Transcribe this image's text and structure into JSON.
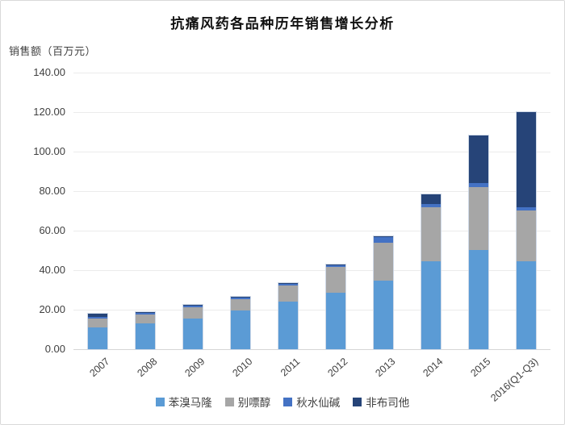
{
  "chart_data": {
    "type": "bar",
    "stacked": true,
    "title": "抗痛风药各品种历年销售增长分析",
    "y_unit_label": "销售额（百万元）",
    "categories": [
      "2007",
      "2008",
      "2009",
      "2010",
      "2011",
      "2012",
      "2013",
      "2014",
      "2015",
      "2016(Q1-Q3)"
    ],
    "series": [
      {
        "name": "苯溴马隆",
        "color": "#5B9BD5",
        "values": [
          11.0,
          13.0,
          15.7,
          19.4,
          23.9,
          28.6,
          34.8,
          44.3,
          50.1,
          44.4
        ]
      },
      {
        "name": "别嘌醇",
        "color": "#A6A6A6",
        "values": [
          4.5,
          4.6,
          5.6,
          6.0,
          8.5,
          13.0,
          19.2,
          27.7,
          32.0,
          26.0
        ]
      },
      {
        "name": "秋水仙碱",
        "color": "#4472C4",
        "values": [
          1.0,
          0.8,
          0.8,
          0.8,
          0.6,
          0.9,
          2.7,
          1.3,
          2.0,
          1.4
        ]
      },
      {
        "name": "非布司他",
        "color": "#264478",
        "values": [
          1.3,
          0.5,
          0.4,
          0.4,
          0.5,
          0.4,
          0.3,
          5.0,
          24.0,
          48.2
        ]
      }
    ],
    "totals": [
      17.8,
      18.9,
      22.5,
      26.6,
      33.5,
      42.9,
      57.0,
      78.3,
      108.1,
      120.0
    ],
    "ylim": [
      0,
      140
    ],
    "ytick_step": 20,
    "ytick_labels": [
      "0.00",
      "20.00",
      "40.00",
      "60.00",
      "80.00",
      "100.00",
      "120.00",
      "140.00"
    ],
    "grid": true,
    "legend_position": "bottom",
    "background_color": "#ffffff",
    "axis_text_color": "#404040"
  }
}
